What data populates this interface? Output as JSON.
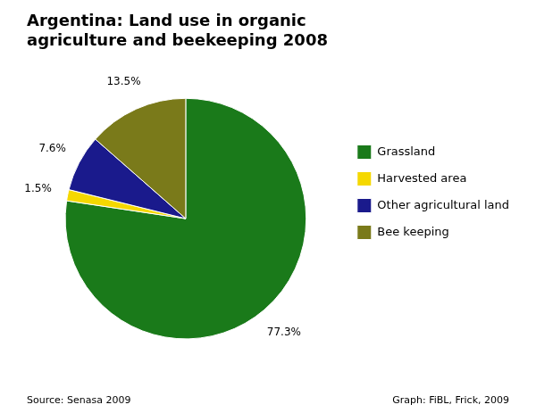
{
  "chart_data": {
    "type": "pie",
    "title": "Argentina: Land use in organic\nagriculture and beekeeping 2008",
    "categories": [
      "Grassland",
      "Harvested area",
      "Other agricultural land",
      "Bee keeping"
    ],
    "values": [
      77.3,
      1.5,
      7.6,
      13.5
    ],
    "value_labels": [
      "77.3%",
      "1.5%",
      "7.6%",
      "13.5%"
    ],
    "colors": [
      "#1a7a1a",
      "#f5d800",
      "#1a1a8c",
      "#7a7a1a"
    ],
    "data_labels": true,
    "legend": "right",
    "annotations": [
      "Source: Senasa 2009",
      "Graph: FiBL, Frick, 2009"
    ]
  }
}
